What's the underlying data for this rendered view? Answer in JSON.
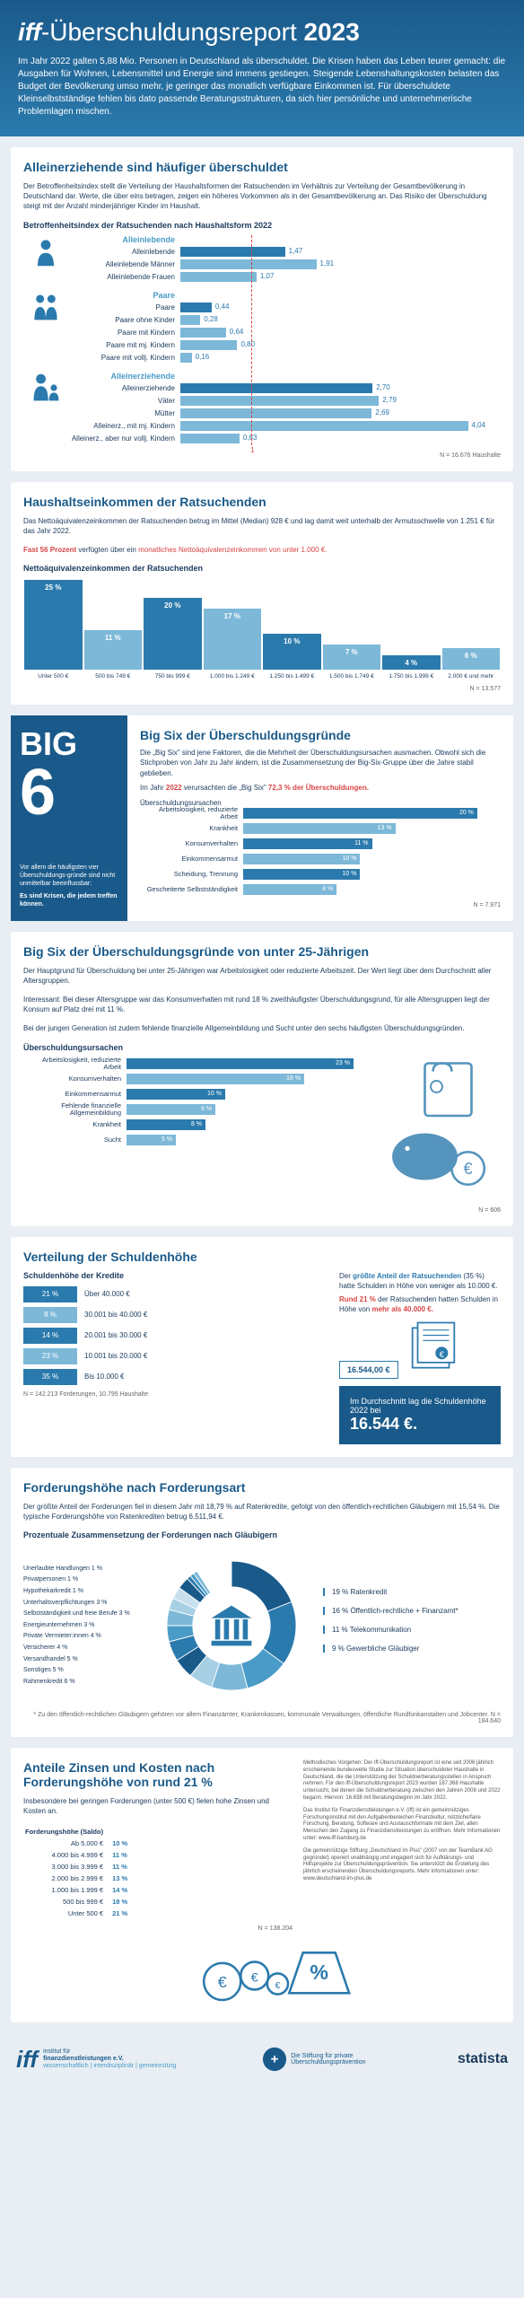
{
  "header": {
    "title_prefix": "iff",
    "title_mid": "-Überschuldungsreport",
    "year": "2023",
    "intro": "Im Jahr 2022 galten 5,88 Mio. Personen in Deutschland als überschuldet. Die Krisen haben das Leben teurer gemacht: die Ausgaben für Wohnen, Lebensmittel und Energie sind immens gestiegen. Steigende Lebenshaltungskosten belasten das Budget der Bevölkerung umso mehr, je geringer das monatlich verfügbare Einkommen ist. Für überschuldete Kleinselbstständige fehlen bis dato passende Beratungsstrukturen, da sich hier persönliche und unternehmerische Problemlagen mischen."
  },
  "s1": {
    "title": "Alleinerziehende sind häufiger überschuldet",
    "subtitle": "Der Betroffenheitsindex stellt die Verteilung der Haushaltsformen der Ratsuchenden im Verhältnis zur Verteilung der Gesamtbevölkerung in Deutschland dar. Werte, die über eins betragen, zeigen ein höheres Vorkommen als in der Gesamtbevölkerung an. Das Risiko der Überschuldung steigt mit der Anzahl minderjähriger Kinder im Haushalt.",
    "caption": "Betroffenheitsindex der Ratsuchenden nach Haushaltsform 2022",
    "max": 4.5,
    "groups": [
      {
        "label": "Alleinlebende",
        "rows": [
          {
            "label": "Alleinlebende",
            "val": 1.47,
            "light": false
          },
          {
            "label": "Alleinlebende Männer",
            "val": 1.91,
            "light": true
          },
          {
            "label": "Alleinlebende Frauen",
            "val": 1.07,
            "light": true
          }
        ]
      },
      {
        "label": "Paare",
        "rows": [
          {
            "label": "Paare",
            "val": 0.44,
            "light": false
          },
          {
            "label": "Paare ohne Kinder",
            "val": 0.28,
            "light": true
          },
          {
            "label": "Paare mit Kindern",
            "val": 0.64,
            "light": true
          },
          {
            "label": "Paare mit mj. Kindern",
            "val": 0.8,
            "light": true
          },
          {
            "label": "Paare mit vollj. Kindern",
            "val": 0.16,
            "light": true
          }
        ]
      },
      {
        "label": "Alleinerziehende",
        "rows": [
          {
            "label": "Alleinerziehende",
            "val": 2.7,
            "light": false
          },
          {
            "label": "Väter",
            "val": 2.79,
            "light": true
          },
          {
            "label": "Mütter",
            "val": 2.69,
            "light": true
          },
          {
            "label": "Alleinerz., mit mj. Kindern",
            "val": 4.04,
            "light": true
          },
          {
            "label": "Alleinerz., aber nur vollj. Kindern",
            "val": 0.83,
            "light": true
          }
        ]
      }
    ],
    "footnote": "N = 16.676 Haushalte",
    "marker": "1"
  },
  "s2": {
    "title": "Haushaltseinkommen der Ratsuchenden",
    "line1": "Das Nettoäquivalenzeinkommen der Ratsuchenden betrug im Mittel (Median) 928 € und lag damit weit unterhalb der Armutsschwelle von 1.251 € für das Jahr 2022.",
    "line2_a": "Fast 56 Prozent",
    "line2_b": " verfügten über ein ",
    "line2_c": "monatliches Nettoäquivalenzeinkommen von unter 1.000 €.",
    "caption": "Nettoäquivalenzeinkommen der Ratsuchenden",
    "bars": [
      {
        "label": "Unter 500 €",
        "pct": 25,
        "light": false
      },
      {
        "label": "500 bis 749 €",
        "pct": 11,
        "light": true
      },
      {
        "label": "750 bis 999 €",
        "pct": 20,
        "light": false
      },
      {
        "label": "1.000 bis 1.249 €",
        "pct": 17,
        "light": true
      },
      {
        "label": "1.250 bis 1.499 €",
        "pct": 10,
        "light": false
      },
      {
        "label": "1.500 bis 1.749 €",
        "pct": 7,
        "light": true
      },
      {
        "label": "1.750 bis 1.999 €",
        "pct": 4,
        "light": false
      },
      {
        "label": "2.000 € und mehr",
        "pct": 6,
        "light": true
      }
    ],
    "footnote": "N = 13.577"
  },
  "big6": {
    "big": "BIG",
    "six": "6",
    "left_text1": "Vor allem die häufigsten vier Überschuldungs-gründe sind nicht unmittelbar beeinflussbar:",
    "left_text2": "Es sind Krisen, die jedem treffen können.",
    "title": "Big Six der Überschuldungsgründe",
    "subtitle1": "Die „Big Six\" sind jene Faktoren, die die Mehrheit der Überschuldungsursachen ausmachen. Obwohl sich die Stichproben von Jahr zu Jahr ändern, ist die Zusammensetzung der Big-Six-Gruppe über die Jahre stabil geblieben.",
    "subtitle2_a": "Im Jahr ",
    "subtitle2_b": "2022",
    "subtitle2_c": " verursachten die „Big Six\" ",
    "subtitle2_d": "72,3 % der Überschuldungen.",
    "caption": "Überschuldungsursachen",
    "rows": [
      {
        "label": "Arbeitslosigkeit, reduzierte Arbeit",
        "pct": 20,
        "light": false
      },
      {
        "label": "Krankheit",
        "pct": 13,
        "light": true
      },
      {
        "label": "Konsumverhalten",
        "pct": 11,
        "light": false
      },
      {
        "label": "Einkommensarmut",
        "pct": 10,
        "light": true
      },
      {
        "label": "Scheidung, Trennung",
        "pct": 10,
        "light": false
      },
      {
        "label": "Gescheiterte Selbstständigkeit",
        "pct": 8,
        "light": true
      }
    ],
    "max": 22,
    "footnote": "N = 7.971"
  },
  "s4": {
    "title": "Big Six der Überschuldungsgründe von unter 25-Jährigen",
    "sub1": "Der Hauptgrund für Überschuldung bei unter 25-Jährigen war Arbeitslosigkeit oder reduzierte Arbeitszeit. Der Wert liegt über dem Durchschnitt aller Altersgruppen.",
    "sub2": "Interessant: Bei dieser Altersgruppe war das Konsumverhalten mit rund 18 % zweithäufigster Überschuldungsgrund, für alle Altersgruppen liegt der Konsum auf Platz drei mit 11 %.",
    "sub3": "Bei der jungen Generation ist zudem fehlende finanzielle Allgemeinbildung und Sucht unter den sechs häufigsten Überschuldungsgründen.",
    "caption": "Überschuldungsursachen",
    "rows": [
      {
        "label": "Arbeitslosigkeit, reduzierte Arbeit",
        "pct": 23,
        "light": false
      },
      {
        "label": "Konsumverhalten",
        "pct": 18,
        "light": true
      },
      {
        "label": "Einkommensarmut",
        "pct": 10,
        "light": false
      },
      {
        "label": "Fehlende finanzielle Allgemeinbildung",
        "pct": 9,
        "light": true
      },
      {
        "label": "Krankheit",
        "pct": 8,
        "light": false
      },
      {
        "label": "Sucht",
        "pct": 5,
        "light": true
      }
    ],
    "max": 25,
    "footnote": "N = 606"
  },
  "s5": {
    "title": "Verteilung der Schuldenhöhe",
    "caption": "Schuldenhöhe der Kredite",
    "rows": [
      {
        "pct": "21 %",
        "label": "Über 40.000 €",
        "light": false
      },
      {
        "pct": "8 %",
        "label": "30.001 bis 40.000 €",
        "light": true
      },
      {
        "pct": "14 %",
        "label": "20.001 bis 30.000 €",
        "light": false
      },
      {
        "pct": "23 %",
        "label": "10.001 bis 20.000 €",
        "light": true
      },
      {
        "pct": "35 %",
        "label": "Bis 10.000 €",
        "light": false
      }
    ],
    "right1_a": "Der ",
    "right1_b": "größte Anteil der Ratsuchenden",
    "right1_c": " (35 %) hatte Schulden in Höhe von weniger als 10.000 €.",
    "right2_a": "Rund 21 %",
    "right2_b": " der Ratsuchenden hatten Schulden in Höhe von ",
    "right2_c": "mehr als 40.000 €.",
    "avg_label": "16.544,00 €",
    "callout1": "Im Durchschnitt lag die Schuldenhöhe 2022 bei",
    "callout2": "16.544 €.",
    "footnote": "N = 142.213 Forderungen, 10.795 Haushalte"
  },
  "s6": {
    "title": "Forderungshöhe nach Forderungsart",
    "sub": "Der größte Anteil der Forderungen fiel in diesem Jahr mit 18,79 % auf Ratenkredite, gefolgt von den öffentlich-rechtlichen Gläubigern mit 15,54 %. Die typische Forderungshöhe von Ratenkrediten betrug 6.511,94 €.",
    "caption": "Prozentuale Zusammensetzung der Forderungen nach Gläubigern",
    "left_labels": [
      "Unerlaubte Handlungen 1 %",
      "Privatpersonen 1 %",
      "Hypothekarkredit 1 %",
      "Unterhaltsverpflichtungen 3 %",
      "Selbstständigkeit und freie Berufe 3 %",
      "Energieunternehmen 3 %",
      "Private Vermieter:innen 4 %",
      "Versicherer 4 %",
      "Versandhandel 5 %",
      "Sonstiges 5 %",
      "Rahmenkredit 6 %"
    ],
    "right_labels": [
      "19 % Ratenkredit",
      "16 % Öffentlich-rechtliche + Finanzamt*",
      "11 % Telekommunikation",
      "9 % Gewerbliche Gläubiger"
    ],
    "donut": {
      "slices": [
        {
          "pct": 19,
          "color": "#1a5a8a"
        },
        {
          "pct": 16,
          "color": "#2b7aad"
        },
        {
          "pct": 11,
          "color": "#4a9bc8"
        },
        {
          "pct": 9,
          "color": "#7db8d8"
        },
        {
          "pct": 6,
          "color": "#a8d0e4"
        },
        {
          "pct": 5,
          "color": "#1a5a8a"
        },
        {
          "pct": 5,
          "color": "#2b7aad"
        },
        {
          "pct": 4,
          "color": "#4a9bc8"
        },
        {
          "pct": 4,
          "color": "#7db8d8"
        },
        {
          "pct": 3,
          "color": "#a8d0e4"
        },
        {
          "pct": 3,
          "color": "#c8e0ed"
        },
        {
          "pct": 3,
          "color": "#1a5a8a"
        },
        {
          "pct": 1,
          "color": "#2b7aad"
        },
        {
          "pct": 1,
          "color": "#4a9bc8"
        },
        {
          "pct": 1,
          "color": "#7db8d8"
        }
      ]
    },
    "star_note": "* Zu den öffentlich-rechtlichen Gläubigern gehören vor allem Finanzämter, Krankenkassen, kommunale Verwaltungen, öffentliche Rundfunkanstalten und Jobcenter. N = 184.640"
  },
  "s7": {
    "title": "Anteile Zinsen und Kosten nach Forderungshöhe von rund 21 %",
    "sub": "Insbesondere bei geringen Forderungen (unter 500 €) fielen hohe Zinsen und Kosten an.",
    "col1": "Forderungshöhe (Saldo)",
    "col2": "",
    "rows": [
      {
        "range": "Ab 5.000 €",
        "pct": "10 %"
      },
      {
        "range": "4.000 bis 4.999 €",
        "pct": "11 %"
      },
      {
        "range": "3.000 bis 3.999 €",
        "pct": "11 %"
      },
      {
        "range": "2.000 bis 2.999 €",
        "pct": "13 %"
      },
      {
        "range": "1.000 bis 1.999 €",
        "pct": "14 %"
      },
      {
        "range": "500 bis 999 €",
        "pct": "18 %"
      },
      {
        "range": "Unter 500 €",
        "pct": "21 %"
      }
    ],
    "footnote": "N = 138.204",
    "methods": "Methodisches Vorgehen: Der iff-Überschuldungsreport ist eine seit 2006 jährlich erscheinende bundesweite Studie zur Situation überschuldeter Haushalte in Deutschland, die die Unterstützung der Schuldnerberatungsstellen in Anspruch nehmen. Für den iff-Überschuldungsreport 2023 wurden 187.368 Haushalte untersucht, bei denen die Schuldnerberatung zwischen den Jahren 2008 und 2022 begann. Hiervon: 16.638 mit Beratungsbeginn im Jahr 2022.",
    "methods2": "Das Institut für Finanzdienstleistungen e.V. (iff) ist ein gemeinnütziges Forschungsinstitut mit den Aufgabenbereichen Finanzkultur, nützliche/faire Forschung, Beratung, Software und Austauschformate mit dem Ziel, allen Menschen den Zugang zu Finanzdienstleistungen zu eröffnen. Mehr Informationen unter: www.iff-hamburg.de",
    "methods3": "Die gemeinnützige Stiftung „Deutschland im Plus\" (2007 von der TeamBank AG gegründet) operiert unabhängig und engagiert sich für Aufklärungs- und Hilfsprojekte zur Überschuldungsprävention. Sie unterstützt die Erstellung des jährlich erscheinenden Überschuldungsreports. Mehr Informationen unter: www.deutschland-im-plus.de"
  },
  "footer": {
    "iff1": "institut für",
    "iff2": "finanzdienstleistungen e.V.",
    "iff3": "wissenschaftlich | interdisziplinär | gemeinnützig",
    "stiftung": "Die Stiftung für private Überschuldungsprävention",
    "statista": "statista"
  }
}
